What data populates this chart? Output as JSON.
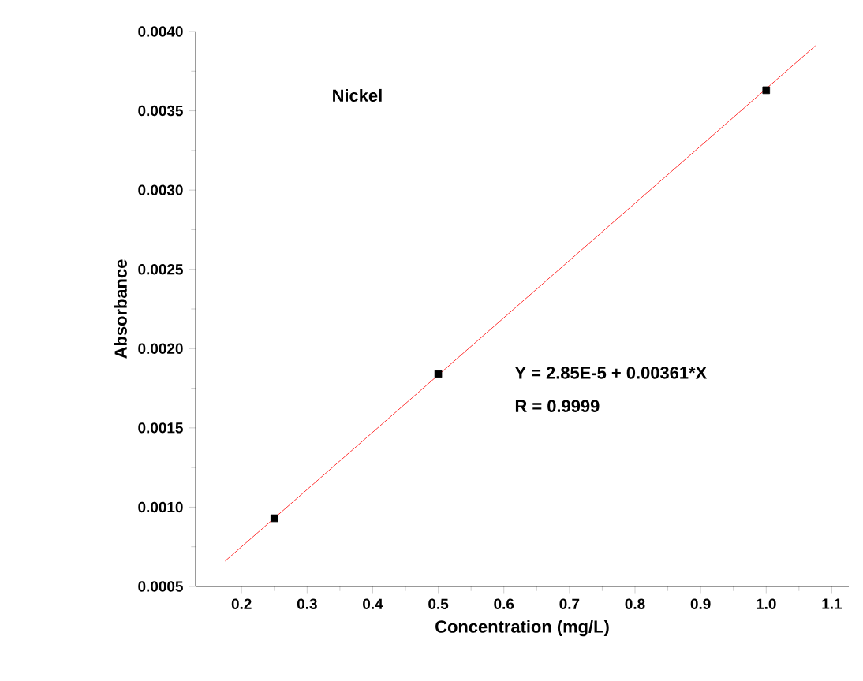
{
  "chart_data": {
    "type": "scatter",
    "title": "Nickel",
    "xlabel": "Concentration (mg/L)",
    "ylabel": "Absorbance",
    "xlim": [
      0.13,
      1.126
    ],
    "ylim": [
      0.0005,
      0.004
    ],
    "xticks": [
      0.2,
      0.3,
      0.4,
      0.5,
      0.6,
      0.7,
      0.8,
      0.9,
      {
        "value": 1.0,
        "label": "1.0"
      },
      1.1
    ],
    "yticks": [
      0.0005,
      {
        "value": 0.001,
        "label": "0.0010"
      },
      0.0015,
      {
        "value": 0.002,
        "label": "0.0020"
      },
      0.0025,
      {
        "value": 0.003,
        "label": "0.0030"
      },
      0.0035,
      {
        "value": 0.004,
        "label": "0.0040"
      }
    ],
    "grid": false,
    "series": [
      {
        "color": "#000000",
        "marker": "square",
        "x": [
          0.25,
          0.5,
          1.0
        ],
        "values": [
          0.00093,
          0.00184,
          0.00363
        ]
      },
      {
        "type": "line",
        "color": "#ff0000",
        "marker": "none",
        "line_style": "solid",
        "x": [
          0.175,
          1.075
        ],
        "values": [
          0.00066,
          0.00391
        ]
      }
    ],
    "annotations": [
      "Y = 2.85E-5 + 0.00361*X",
      "R = 0.9999"
    ]
  }
}
